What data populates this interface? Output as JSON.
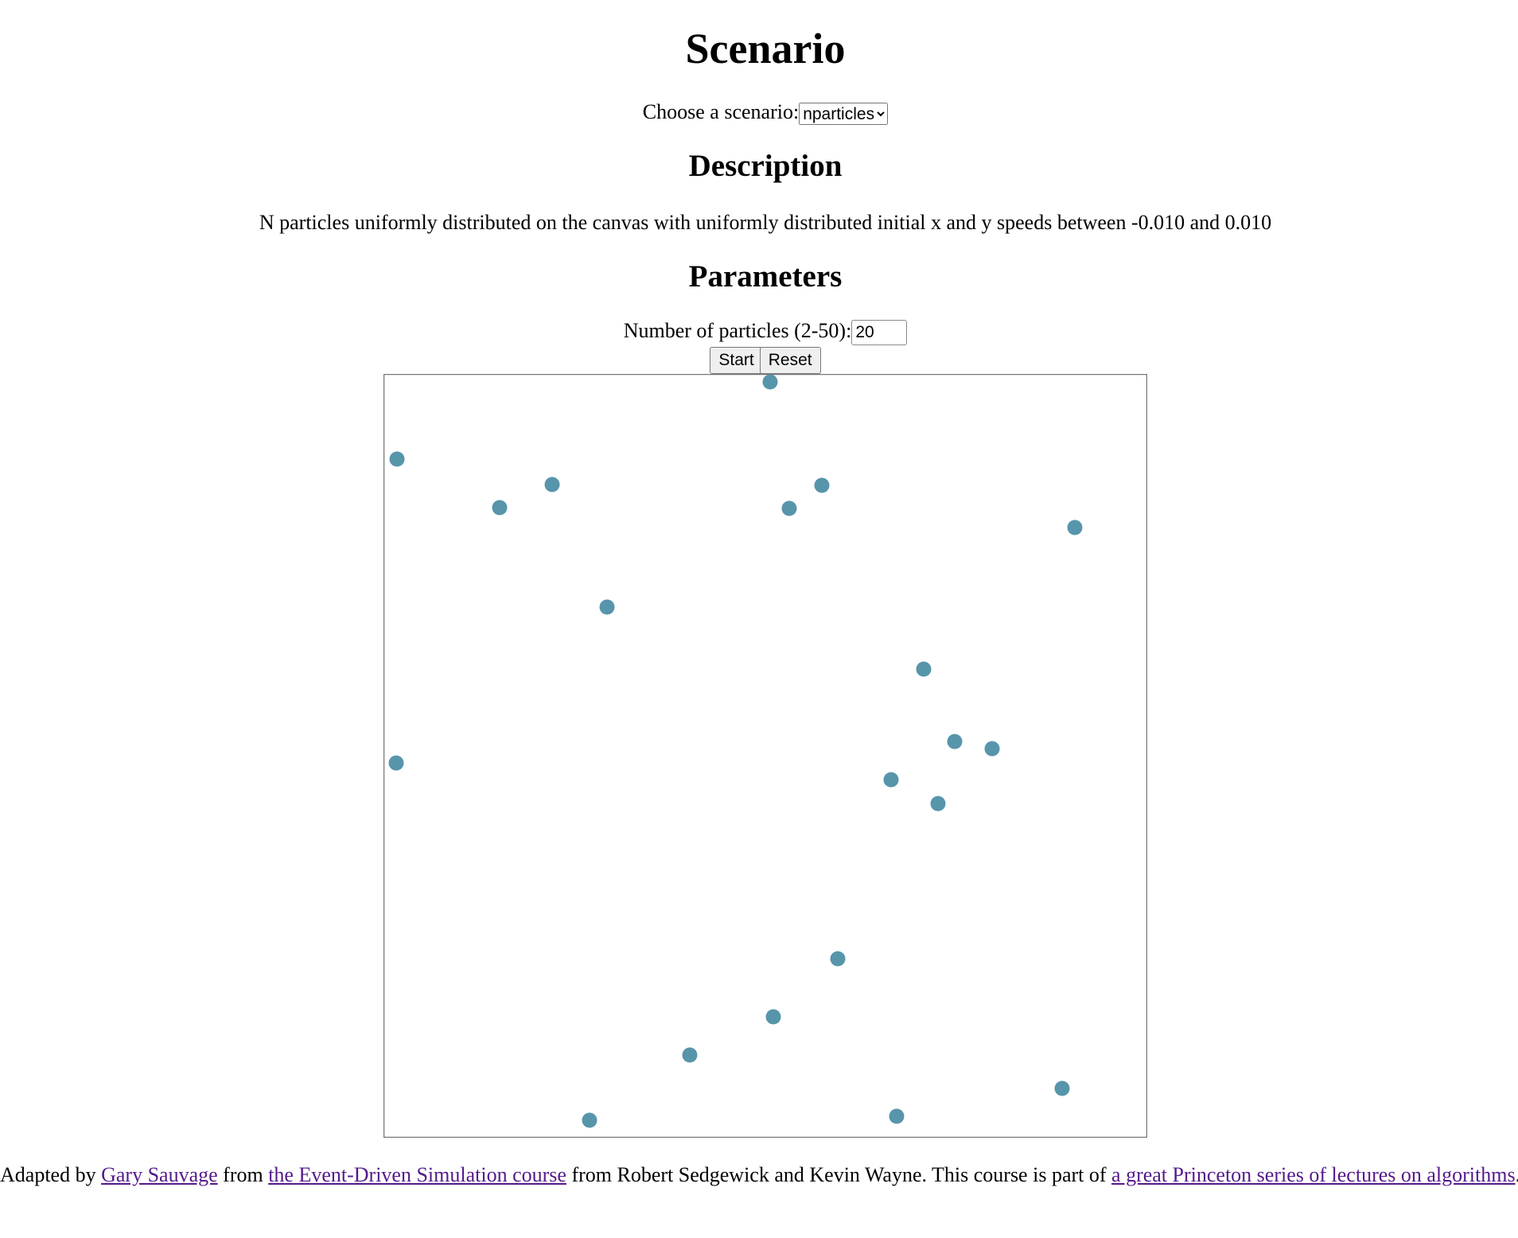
{
  "header": {
    "title": "Scenario",
    "scenario_label": "Choose a scenario:",
    "scenario_value": "nparticles"
  },
  "description": {
    "heading": "Description",
    "text": "N particles uniformly distributed on the canvas with uniformly distributed initial x and y speeds between -0.010 and 0.010"
  },
  "parameters": {
    "heading": "Parameters",
    "particles_label": "Number of particles (2-50):",
    "particles_value": "20",
    "start_button": "Start",
    "reset_button": "Reset"
  },
  "footer": {
    "part1": "Adapted by",
    "link1": "Gary Sauvage",
    "part2": "from",
    "link2": "the Event-Driven Simulation course",
    "part3": "from Robert Sedgewick and Kevin Wayne. This course is part of",
    "link3": "a great Princeton series of lectures on algorithms",
    "part4": "."
  }
}
